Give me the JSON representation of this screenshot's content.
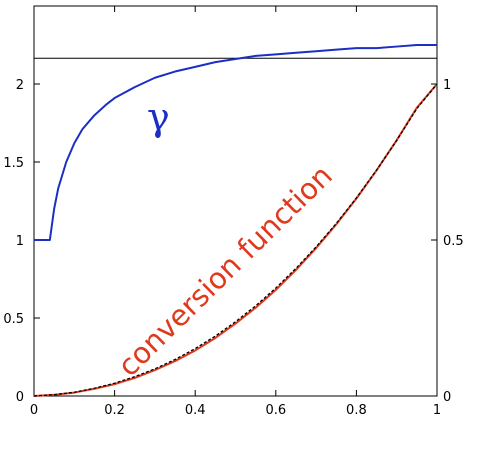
{
  "chart_data": {
    "type": "line",
    "title": "",
    "xlabel": "",
    "ylabel": "",
    "xlim": [
      0,
      1
    ],
    "ylim_left": [
      0,
      2.5
    ],
    "ylim_right": [
      0,
      1.25
    ],
    "grid": false,
    "legend": "none",
    "x_ticks": [
      "0",
      "0.2",
      "0.4",
      "0.6",
      "0.8",
      "1"
    ],
    "y_ticks_left": [
      "0",
      "0.5",
      "1",
      "1.5",
      "2"
    ],
    "y_ticks_right": [
      "0",
      "0.5",
      "1"
    ],
    "reference_line": {
      "axis": "left",
      "y": 2.165,
      "color": "#000000"
    },
    "series": [
      {
        "axis": "left",
        "color": "#1c2fc4",
        "points": [
          [
            0,
            1
          ],
          [
            0.018,
            1
          ],
          [
            0.036,
            1
          ],
          [
            0.0393,
            1
          ],
          [
            0.05,
            1.2
          ],
          [
            0.06,
            1.33
          ],
          [
            0.08,
            1.5
          ],
          [
            0.1,
            1.62
          ],
          [
            0.12,
            1.71
          ],
          [
            0.15,
            1.8
          ],
          [
            0.18,
            1.87
          ],
          [
            0.2,
            1.91
          ],
          [
            0.25,
            1.98
          ],
          [
            0.3,
            2.04
          ],
          [
            0.35,
            2.08
          ],
          [
            0.4,
            2.11
          ],
          [
            0.45,
            2.14
          ],
          [
            0.5,
            2.16
          ],
          [
            0.55,
            2.18
          ],
          [
            0.6,
            2.19
          ],
          [
            0.65,
            2.2
          ],
          [
            0.7,
            2.21
          ],
          [
            0.75,
            2.22
          ],
          [
            0.8,
            2.23
          ],
          [
            0.85,
            2.23
          ],
          [
            0.9,
            2.24
          ],
          [
            0.95,
            2.25
          ],
          [
            1,
            2.25
          ]
        ]
      },
      {
        "axis": "right",
        "color": "#e03a1e",
        "points": [
          [
            0,
            0
          ],
          [
            0.05,
            0.004
          ],
          [
            0.1,
            0.011
          ],
          [
            0.15,
            0.023
          ],
          [
            0.2,
            0.038
          ],
          [
            0.25,
            0.058
          ],
          [
            0.3,
            0.083
          ],
          [
            0.35,
            0.112
          ],
          [
            0.4,
            0.146
          ],
          [
            0.45,
            0.186
          ],
          [
            0.5,
            0.232
          ],
          [
            0.55,
            0.283
          ],
          [
            0.6,
            0.34
          ],
          [
            0.65,
            0.404
          ],
          [
            0.7,
            0.474
          ],
          [
            0.75,
            0.55
          ],
          [
            0.8,
            0.633
          ],
          [
            0.85,
            0.723
          ],
          [
            0.9,
            0.82
          ],
          [
            0.95,
            0.924
          ],
          [
            1,
            1
          ]
        ]
      },
      {
        "axis": "right",
        "color": "#000000",
        "dashed": true,
        "points": [
          [
            0,
            0
          ],
          [
            0.05,
            0.004
          ],
          [
            0.1,
            0.012
          ],
          [
            0.15,
            0.025
          ],
          [
            0.2,
            0.041
          ],
          [
            0.25,
            0.062
          ],
          [
            0.3,
            0.087
          ],
          [
            0.35,
            0.117
          ],
          [
            0.4,
            0.152
          ],
          [
            0.45,
            0.192
          ],
          [
            0.5,
            0.238
          ],
          [
            0.55,
            0.289
          ],
          [
            0.6,
            0.346
          ],
          [
            0.65,
            0.409
          ],
          [
            0.7,
            0.478
          ],
          [
            0.75,
            0.553
          ],
          [
            0.8,
            0.635
          ],
          [
            0.85,
            0.724
          ],
          [
            0.9,
            0.819
          ],
          [
            0.95,
            0.921
          ],
          [
            1,
            1
          ]
        ]
      }
    ],
    "annotations": [
      {
        "text": "γ",
        "color": "#1c2fc4"
      },
      {
        "text": "conversion function",
        "color": "#e03a1e"
      }
    ]
  }
}
